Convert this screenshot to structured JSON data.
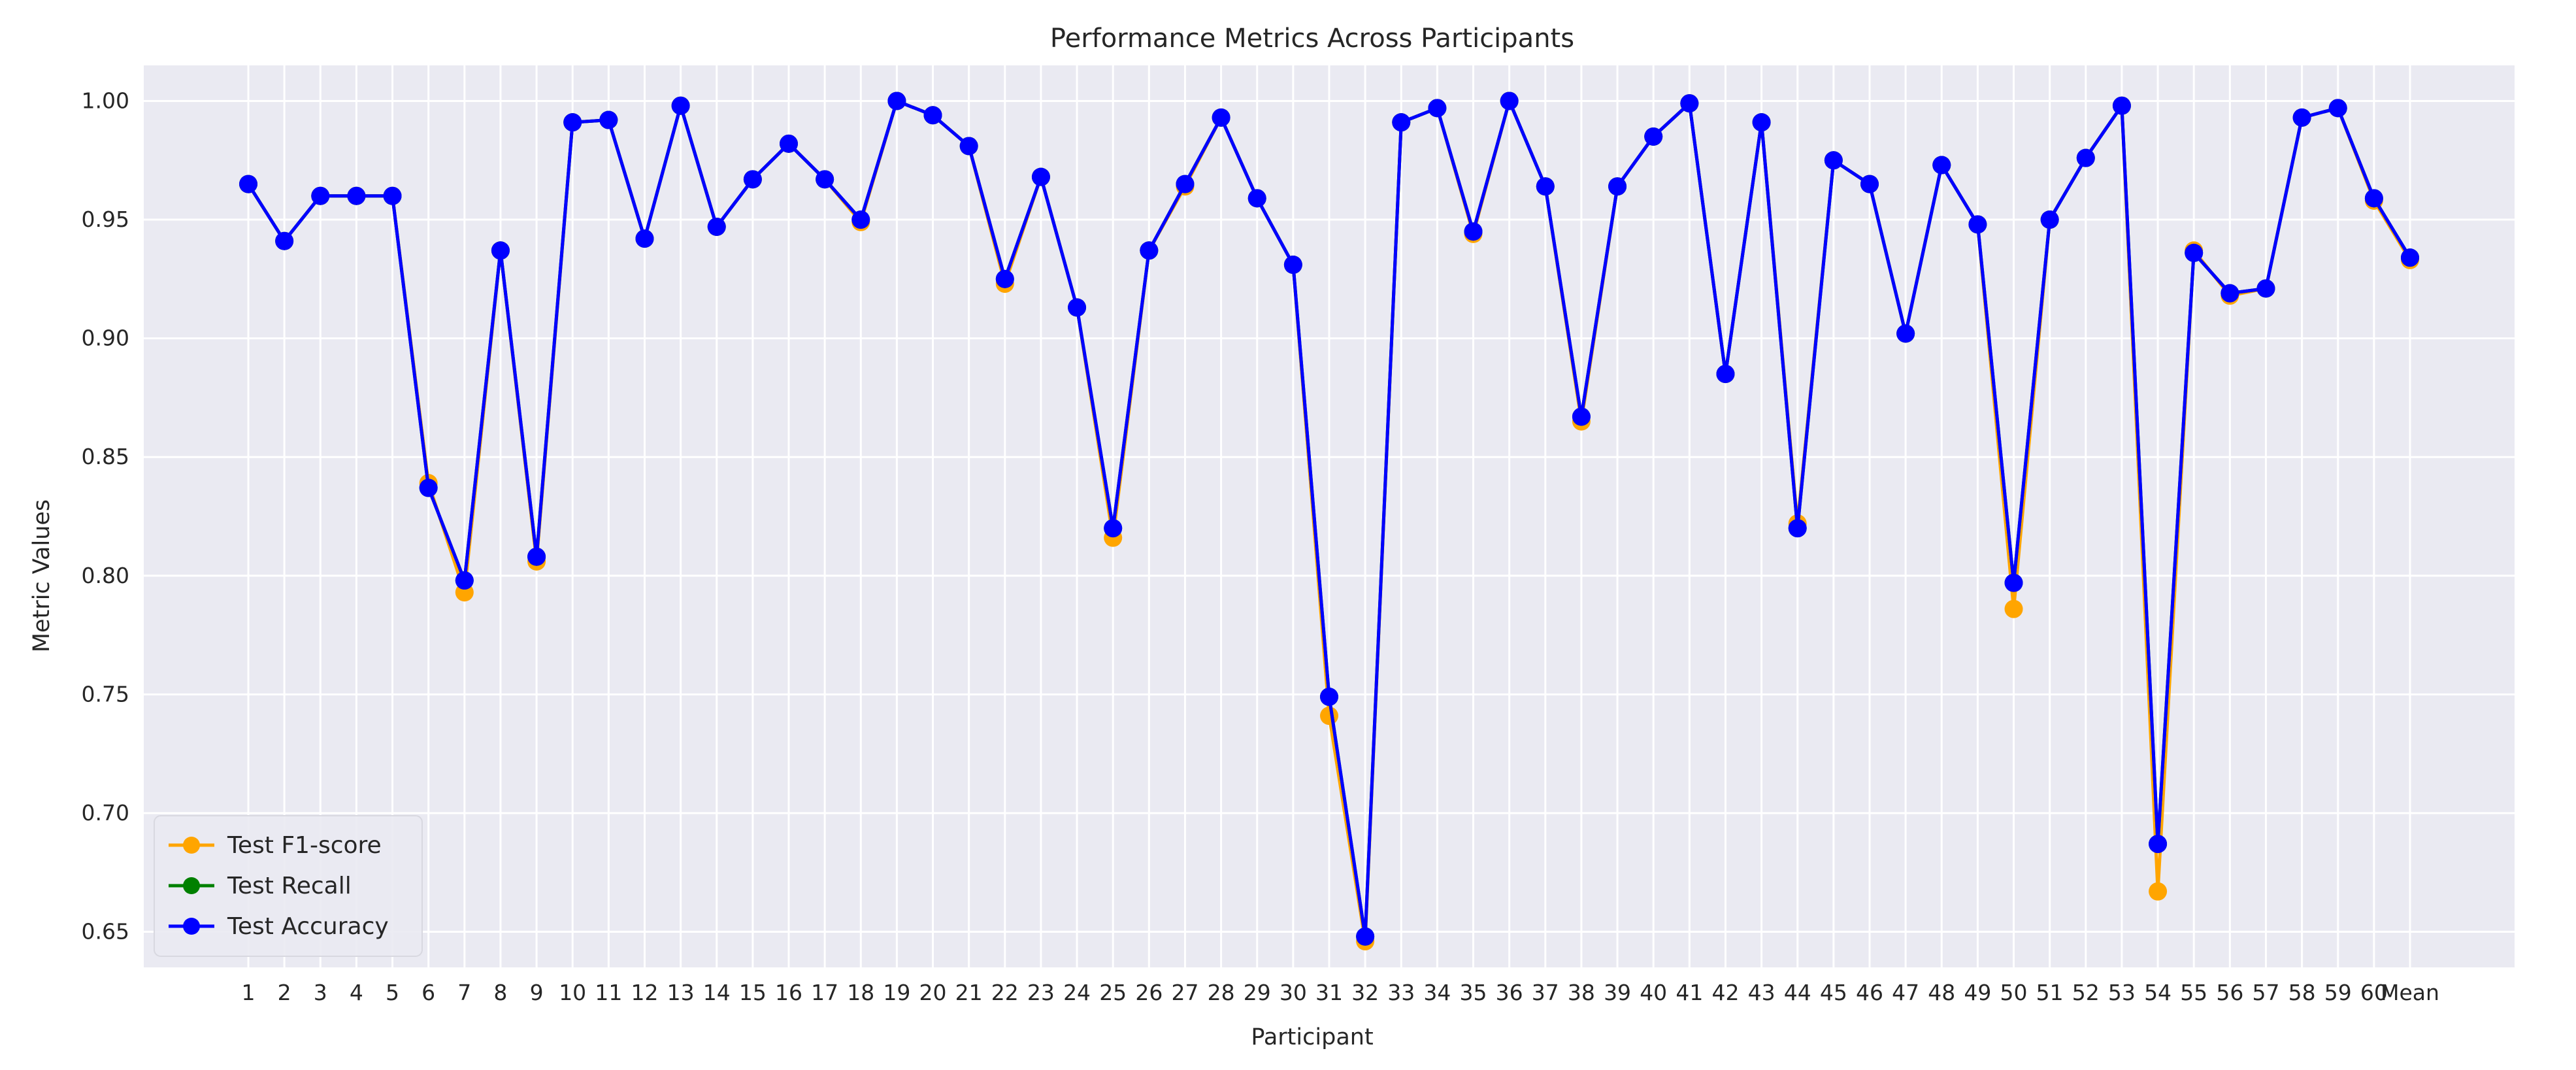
{
  "chart_data": {
    "type": "line",
    "title": "Performance Metrics Across Participants",
    "xlabel": "Participant",
    "ylabel": "Metric Values",
    "ylim": [
      0.635,
      1.015
    ],
    "yticks": [
      0.65,
      0.7,
      0.75,
      0.8,
      0.85,
      0.9,
      0.95,
      1.0
    ],
    "ytick_labels": [
      "0.65",
      "0.70",
      "0.75",
      "0.80",
      "0.85",
      "0.90",
      "0.95",
      "1.00"
    ],
    "grid": true,
    "legend_position": "lower-left",
    "categories": [
      "1",
      "2",
      "3",
      "4",
      "5",
      "6",
      "7",
      "8",
      "9",
      "10",
      "11",
      "12",
      "13",
      "14",
      "15",
      "16",
      "17",
      "18",
      "19",
      "20",
      "21",
      "22",
      "23",
      "24",
      "25",
      "26",
      "27",
      "28",
      "29",
      "30",
      "31",
      "32",
      "33",
      "34",
      "35",
      "36",
      "37",
      "38",
      "39",
      "40",
      "41",
      "42",
      "43",
      "44",
      "45",
      "46",
      "47",
      "48",
      "49",
      "50",
      "51",
      "52",
      "53",
      "54",
      "55",
      "56",
      "57",
      "58",
      "59",
      "60",
      "Mean"
    ],
    "series": [
      {
        "name": "Test F1-score",
        "color": "#FFA500",
        "values": [
          0.965,
          0.941,
          0.96,
          0.96,
          0.96,
          0.839,
          0.793,
          0.937,
          0.806,
          0.991,
          0.992,
          0.942,
          0.998,
          0.947,
          0.967,
          0.982,
          0.967,
          0.949,
          1.0,
          0.994,
          0.981,
          0.923,
          0.968,
          0.913,
          0.816,
          0.937,
          0.964,
          0.993,
          0.959,
          0.931,
          0.741,
          0.646,
          0.991,
          0.997,
          0.944,
          1.0,
          0.964,
          0.865,
          0.964,
          0.985,
          0.999,
          0.885,
          0.991,
          0.822,
          0.975,
          0.965,
          0.902,
          0.973,
          0.948,
          0.786,
          0.95,
          0.976,
          0.998,
          0.667,
          0.937,
          0.918,
          0.921,
          0.993,
          0.997,
          0.958,
          0.933
        ]
      },
      {
        "name": "Test Recall",
        "color": "#008000",
        "values": [
          0.965,
          0.941,
          0.96,
          0.96,
          0.96,
          0.837,
          0.798,
          0.937,
          0.808,
          0.991,
          0.992,
          0.942,
          0.998,
          0.947,
          0.967,
          0.982,
          0.967,
          0.95,
          1.0,
          0.994,
          0.981,
          0.925,
          0.968,
          0.913,
          0.82,
          0.937,
          0.965,
          0.993,
          0.959,
          0.931,
          0.749,
          0.648,
          0.991,
          0.997,
          0.945,
          1.0,
          0.964,
          0.867,
          0.964,
          0.985,
          0.999,
          0.885,
          0.991,
          0.82,
          0.975,
          0.965,
          0.902,
          0.973,
          0.948,
          0.797,
          0.95,
          0.976,
          0.998,
          0.687,
          0.936,
          0.919,
          0.921,
          0.993,
          0.997,
          0.959,
          0.934
        ]
      },
      {
        "name": "Test Accuracy",
        "color": "#0000FF",
        "values": [
          0.965,
          0.941,
          0.96,
          0.96,
          0.96,
          0.837,
          0.798,
          0.937,
          0.808,
          0.991,
          0.992,
          0.942,
          0.998,
          0.947,
          0.967,
          0.982,
          0.967,
          0.95,
          1.0,
          0.994,
          0.981,
          0.925,
          0.968,
          0.913,
          0.82,
          0.937,
          0.965,
          0.993,
          0.959,
          0.931,
          0.749,
          0.648,
          0.991,
          0.997,
          0.945,
          1.0,
          0.964,
          0.867,
          0.964,
          0.985,
          0.999,
          0.885,
          0.991,
          0.82,
          0.975,
          0.965,
          0.902,
          0.973,
          0.948,
          0.797,
          0.95,
          0.976,
          0.998,
          0.687,
          0.936,
          0.919,
          0.921,
          0.993,
          0.997,
          0.959,
          0.934
        ]
      }
    ]
  }
}
